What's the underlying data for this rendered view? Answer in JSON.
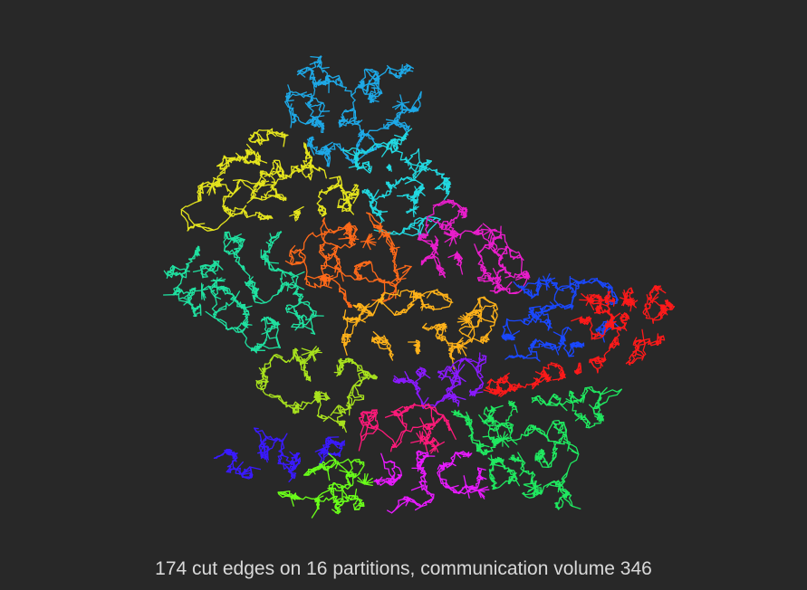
{
  "caption": "174 cut edges on 16 partitions, communication volume 346",
  "colors": {
    "background": "#282828",
    "caption_text": "#d9d9d9"
  },
  "graph": {
    "type": "partitioned road-network graph",
    "partition_count": 16,
    "cut_edges": 174,
    "communication_volume": 346,
    "partitions": [
      {
        "id": 1,
        "color": "#1ea8e6"
      },
      {
        "id": 2,
        "color": "#22d8e0"
      },
      {
        "id": 3,
        "color": "#e4e41e"
      },
      {
        "id": 4,
        "color": "#e81ecb"
      },
      {
        "id": 5,
        "color": "#ff6a1a"
      },
      {
        "id": 6,
        "color": "#20e0a0"
      },
      {
        "id": 7,
        "color": "#ffb21a"
      },
      {
        "id": 8,
        "color": "#1a48ff"
      },
      {
        "id": 9,
        "color": "#ff1a1a"
      },
      {
        "id": 10,
        "color": "#a8e21e"
      },
      {
        "id": 11,
        "color": "#8a1aff"
      },
      {
        "id": 12,
        "color": "#ff1a7a"
      },
      {
        "id": 13,
        "color": "#20e860"
      },
      {
        "id": 14,
        "color": "#3a1aff"
      },
      {
        "id": 15,
        "color": "#6aff1a"
      },
      {
        "id": 16,
        "color": "#e81aff"
      }
    ]
  }
}
